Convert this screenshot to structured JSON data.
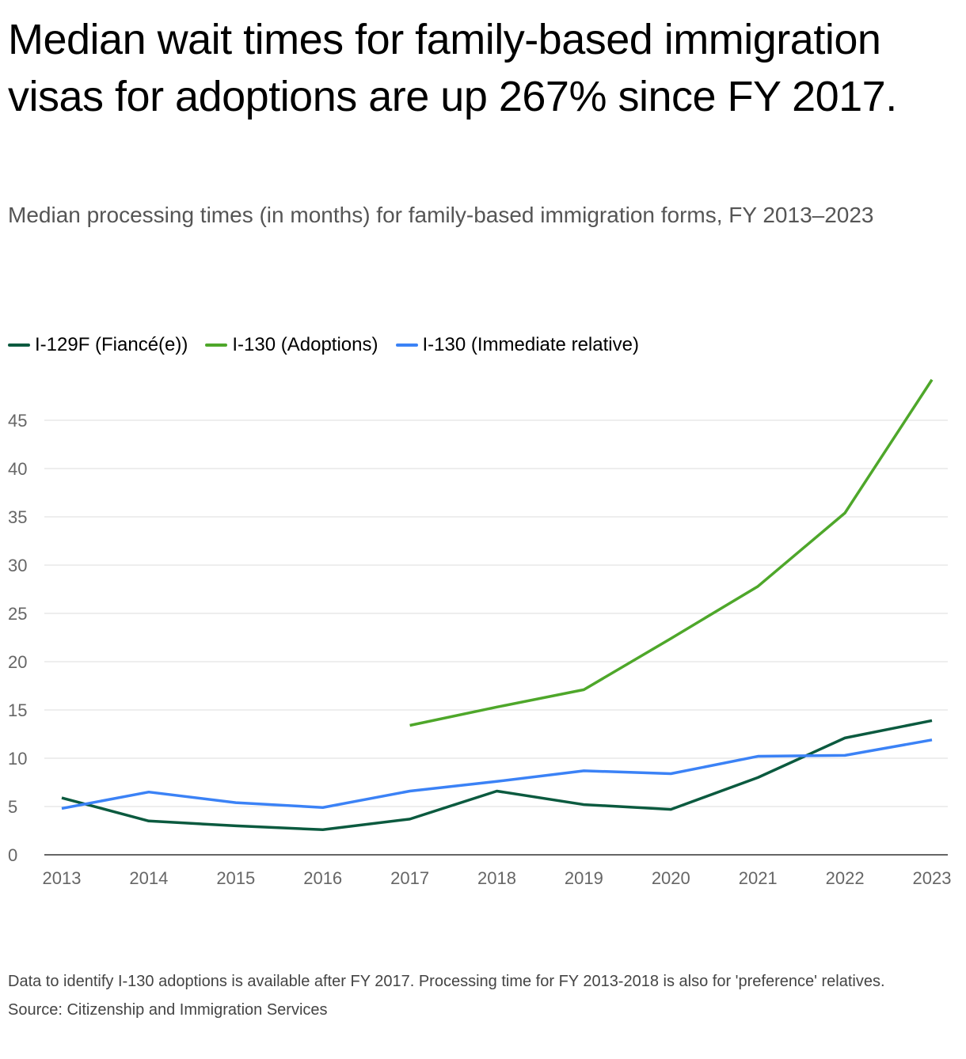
{
  "title": "Median wait times for family-based immigration visas for adoptions are up 267% since FY 2017.",
  "subtitle": "Median processing times (in months) for family-based immigration forms, FY 2013–2023",
  "note": "Data to identify I-130 adoptions is available after FY 2017. Processing time for FY 2013-2018 is also for 'preference' relatives.",
  "source": "Source: Citizenship and Immigration Services",
  "chart_data": {
    "type": "line",
    "x": [
      2013,
      2014,
      2015,
      2016,
      2017,
      2018,
      2019,
      2020,
      2021,
      2022,
      2023
    ],
    "ylim": [
      0,
      50
    ],
    "yticks": [
      0,
      5,
      10,
      15,
      20,
      25,
      30,
      35,
      40,
      45
    ],
    "grid": true,
    "legend_placement": "top-left",
    "series": [
      {
        "name": "I-129F (Fiancé(e))",
        "color": "#0b5a3f",
        "values": [
          5.9,
          3.5,
          3.0,
          2.6,
          3.7,
          6.6,
          5.2,
          4.7,
          8.0,
          12.1,
          13.9
        ]
      },
      {
        "name": "I-130 (Adoptions)",
        "color": "#4ea72a",
        "values": [
          null,
          null,
          null,
          null,
          13.4,
          15.3,
          17.1,
          22.4,
          27.8,
          35.4,
          49.2
        ]
      },
      {
        "name": "I-130 (Immediate relative)",
        "color": "#3b82f6",
        "values": [
          4.8,
          6.5,
          5.4,
          4.9,
          6.6,
          7.6,
          8.7,
          8.4,
          10.2,
          10.3,
          11.9
        ]
      }
    ]
  }
}
